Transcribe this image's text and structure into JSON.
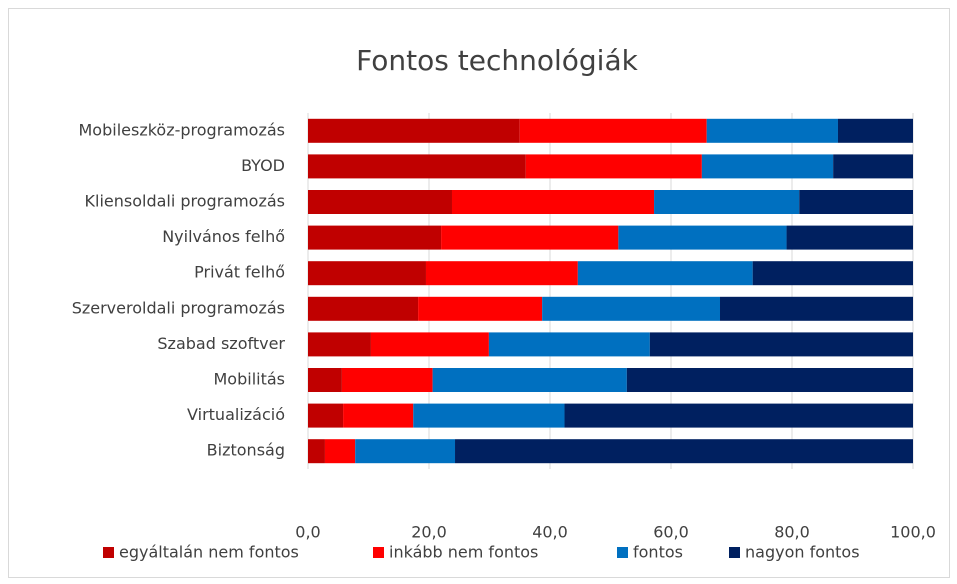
{
  "chart_data": {
    "type": "stacked_barh",
    "title": "Fontos technológiák",
    "categories": [
      "Mobileszköz-programozás",
      "BYOD",
      "Kliensoldali programozás",
      "Nyilvános felhő",
      "Privát felhő",
      "Szerveroldali programozás",
      "Szabad szoftver",
      "Mobilitás",
      "Virtualizáció",
      "Biztonság"
    ],
    "series": [
      {
        "name": "egyáltalán nem fontos",
        "color": "#c00000",
        "values": [
          35.0,
          36.0,
          23.8,
          22.0,
          19.5,
          18.2,
          10.4,
          5.6,
          5.8,
          2.8
        ]
      },
      {
        "name": "inkább nem fontos",
        "color": "#ff0000",
        "values": [
          30.9,
          29.1,
          33.4,
          29.3,
          25.1,
          20.5,
          19.5,
          15.0,
          11.6,
          5.0
        ]
      },
      {
        "name": "fontos",
        "color": "#0070c0",
        "values": [
          21.7,
          21.7,
          24.0,
          27.8,
          28.9,
          29.4,
          26.6,
          32.1,
          25.0,
          16.5
        ]
      },
      {
        "name": "nagyon fontos",
        "color": "#002060",
        "values": [
          12.4,
          13.2,
          18.8,
          20.9,
          26.5,
          31.9,
          43.5,
          47.3,
          57.6,
          75.7
        ]
      }
    ],
    "xlim": [
      0,
      100
    ],
    "xticks": [
      {
        "value": 0,
        "label": "0,0"
      },
      {
        "value": 20,
        "label": "20,0"
      },
      {
        "value": 40,
        "label": "40,0"
      },
      {
        "value": 60,
        "label": "60,0"
      },
      {
        "value": 80,
        "label": "80,0"
      },
      {
        "value": 100,
        "label": "100,0"
      }
    ],
    "grid": true,
    "legend": "bottom"
  }
}
